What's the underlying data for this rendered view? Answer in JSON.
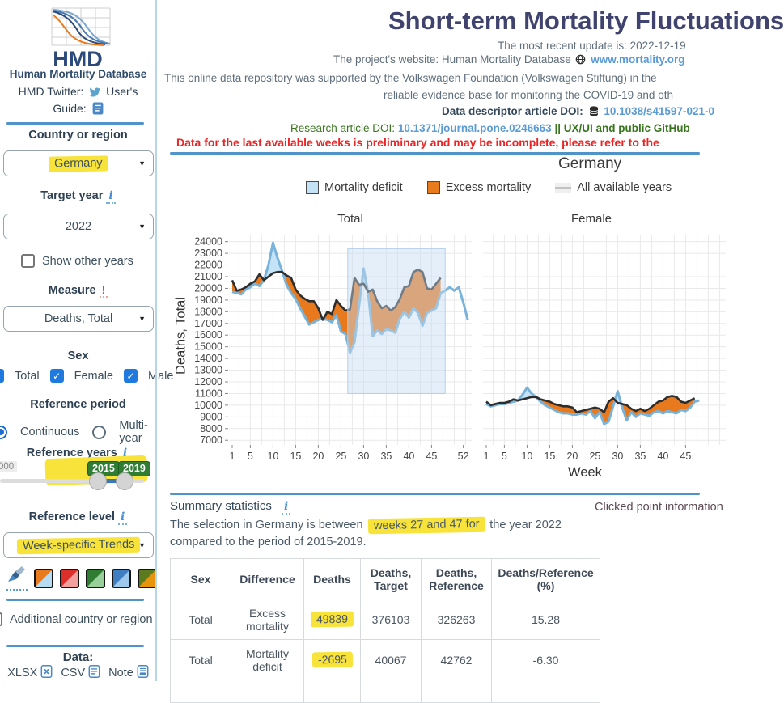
{
  "icons": {
    "info": "i",
    "warning": "!",
    "caret": "▼",
    "check": "✓"
  },
  "sidebar": {
    "logo_text": "HMD",
    "org_name": "Human Mortality Database",
    "twitter_label": "HMD Twitter:",
    "guide_label": "User's Guide:",
    "country_label": "Country or region",
    "country_value": "Germany",
    "target_year_label": "Target year",
    "target_year_value": "2022",
    "show_other_years_label": "Show other years",
    "measure_label": "Measure",
    "measure_value": "Deaths, Total",
    "sex_label": "Sex",
    "sex_options": [
      {
        "label": "Total",
        "checked": true
      },
      {
        "label": "Female",
        "checked": true
      },
      {
        "label": "Male",
        "checked": true
      }
    ],
    "reference_period_label": "Reference period",
    "reference_period_options": [
      {
        "label": "Continuous",
        "selected": true
      },
      {
        "label": "Multi-year",
        "selected": false
      }
    ],
    "reference_years_label": "Reference years",
    "slider_min_label": "000",
    "reference_year_start": "2015",
    "reference_year_end": "2019",
    "reference_level_label": "Reference level",
    "reference_level_value": "Week-specific Trends",
    "palette": [
      [
        "#e87b1e",
        "#b7dcf2"
      ],
      [
        "#dd2f2a",
        "#f1a09e"
      ],
      [
        "#2f7d32",
        "#97d098"
      ],
      [
        "#3f7fc1",
        "#9ec9ea"
      ],
      [
        "#5c7a1e",
        "#e8930c"
      ]
    ],
    "additional_label": "Additional country or region",
    "data_label": "Data:",
    "downloads": [
      "XLSX",
      "CSV",
      "Note"
    ]
  },
  "header": {
    "title": "Short-term Mortality Fluctuations",
    "update_line": "The most recent update is: 2022-12-19",
    "website_prefix": "The project's website: Human Mortality Database",
    "website_link": "www.mortality.org",
    "support_line": "This online data repository was supported by the Volkswagen Foundation (Volkswagen Stiftung) in the",
    "support_line2": "reliable evidence base for monitoring the COVID-19 and oth",
    "doi_label": "Data descriptor article DOI:",
    "doi_link": "10.1038/s41597-021-0",
    "research_label": "Research article DOI:",
    "research_link": "10.1371/journal.pone.0246663",
    "research_suffix": "|| UX/UI and public GitHub",
    "warning": "Data for the last available weeks is preliminary and may be incomplete, please refer to the"
  },
  "chart_data": {
    "type": "area",
    "title": "Germany",
    "xlabel": "Week",
    "ylabel": "Deaths, Total",
    "ylim": [
      6600,
      24600
    ],
    "yticks": [
      7000,
      8000,
      9000,
      10000,
      11000,
      12000,
      13000,
      14000,
      15000,
      16000,
      17000,
      18000,
      19000,
      20000,
      21000,
      22000,
      23000,
      24000
    ],
    "legend": [
      {
        "label": "Mortality deficit",
        "color": "#c5e3f6"
      },
      {
        "label": "Excess mortality",
        "color": "#e87b1e"
      },
      {
        "label": "All available years",
        "color": "line-gray"
      }
    ],
    "colors": {
      "observed_line": "#2d2d2d",
      "expected_line": "#7ab3d9",
      "excess_fill": "#e8791d",
      "deficit_fill": "#c5e3f6",
      "selection_fill": "rgba(197,220,242,0.45)",
      "selection_stroke": "#b3cfe8",
      "grid": "#e9e9e9"
    },
    "subplots": [
      {
        "title": "Total",
        "xticks": [
          1,
          5,
          10,
          15,
          20,
          25,
          30,
          35,
          40,
          45,
          52
        ],
        "observed": [
          20700,
          19800,
          19900,
          20100,
          20400,
          20600,
          21200,
          20700,
          21000,
          21300,
          21400,
          21400,
          21100,
          20900,
          19900,
          19400,
          19100,
          18900,
          18900,
          18300,
          17300,
          18000,
          17800,
          19000,
          18500,
          18100,
          18200,
          20900,
          20300,
          20400,
          19700,
          19900,
          18900,
          18300,
          18500,
          18100,
          18400,
          19100,
          20100,
          20200,
          21400,
          21600,
          21400,
          20000,
          19900,
          20400,
          20900
        ],
        "expected": [
          19700,
          19600,
          19500,
          19900,
          20100,
          20400,
          20200,
          20700,
          22000,
          23900,
          22600,
          21500,
          20300,
          19600,
          19100,
          18300,
          17600,
          16900,
          17100,
          17300,
          17400,
          17300,
          17100,
          17700,
          16300,
          16100,
          14500,
          15400,
          18500,
          21700,
          19600,
          15900,
          16400,
          16100,
          16500,
          16400,
          16200,
          17400,
          18000,
          17500,
          18300,
          17900,
          16800,
          17900,
          18100,
          18300,
          19600,
          19800,
          20100,
          19800,
          20100,
          18800,
          17300
        ],
        "selection": {
          "week_start": 26.5,
          "week_end": 48,
          "y_start": 11000,
          "y_end": 23400
        }
      },
      {
        "title": "Female",
        "xticks": [
          1,
          5,
          10,
          15,
          20,
          25,
          30,
          35,
          40,
          45
        ],
        "observed": [
          10300,
          10000,
          10100,
          10200,
          10200,
          10300,
          10500,
          10400,
          10500,
          10600,
          10700,
          10700,
          10500,
          10400,
          10300,
          10100,
          10000,
          9900,
          9900,
          9800,
          9400,
          9500,
          9600,
          9700,
          9800,
          9700,
          9400,
          10300,
          10600,
          10200,
          10100,
          10000,
          9700,
          9500,
          9700,
          9500,
          9700,
          10000,
          10300,
          10400,
          10700,
          10800,
          10700,
          10300,
          10200,
          10400,
          10600
        ],
        "expected": [
          10100,
          9900,
          10000,
          10100,
          10100,
          10200,
          10300,
          10400,
          10900,
          11500,
          11000,
          10700,
          10300,
          10000,
          9800,
          9600,
          9400,
          9300,
          9300,
          9200,
          9200,
          9300,
          9200,
          9500,
          8900,
          9400,
          8400,
          8600,
          9900,
          11200,
          9800,
          8700,
          9400,
          9000,
          9300,
          9200,
          9100,
          9400,
          9500,
          9300,
          9500,
          9400,
          9300,
          9600,
          9500,
          9800,
          10300,
          10400
        ]
      }
    ]
  },
  "summary": {
    "title": "Summary statistics",
    "clicked_info": "Clicked point information",
    "line1_pre": "The selection in Germany is between",
    "line1_highlight": "weeks 27 and 47 for",
    "line1_post": "the year 2022",
    "line2": "compared to the period of 2015-2019.",
    "table": {
      "headers": [
        "Sex",
        "Difference",
        "Deaths",
        "Deaths, Target",
        "Deaths, Reference",
        "Deaths/Reference (%)"
      ],
      "rows": [
        {
          "cells": [
            "Total",
            "Excess mortality",
            "49839",
            "376103",
            "326263",
            "15.28"
          ],
          "highlight_col": 2
        },
        {
          "cells": [
            "Total",
            "Mortality deficit",
            "-2695",
            "40067",
            "42762",
            "-6.30"
          ],
          "highlight_col": 2
        }
      ]
    }
  }
}
